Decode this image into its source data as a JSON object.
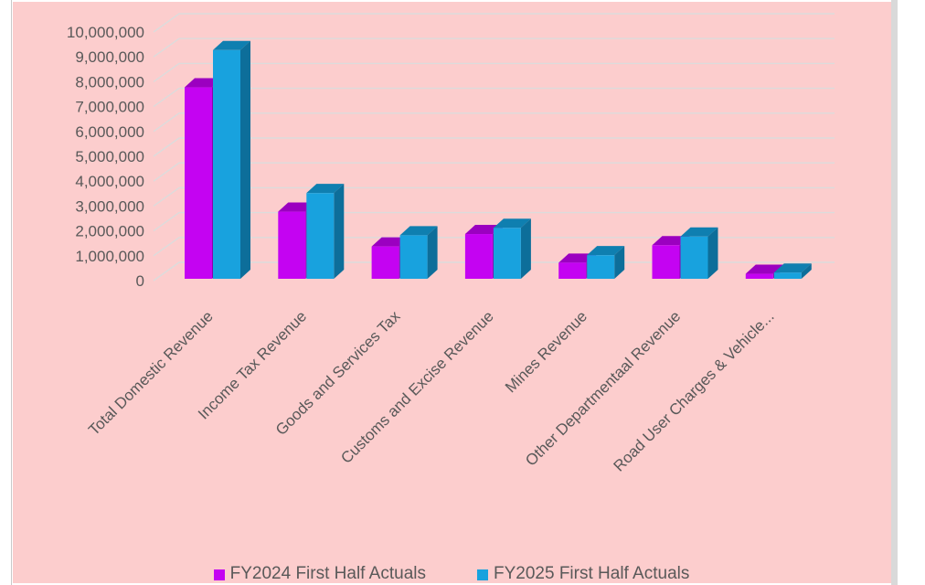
{
  "window": {
    "page_background": "#FFFFFF",
    "left_margin_color": "#FFFFFF",
    "right_strip_color": "#D9D9D9",
    "border_line_color": "#C9C9C9"
  },
  "chart_data": {
    "type": "bar",
    "style": "3d-clustered-column",
    "title": "",
    "xlabel": "",
    "ylabel": "",
    "plot_background": "#FCCDCD",
    "gridline_color": "#DCDCDC",
    "label_color": "#595959",
    "grid": true,
    "legend_position": "bottom",
    "ylim": [
      0,
      10000000
    ],
    "y_tick_step": 1000000,
    "y_ticks": [
      "0",
      "1,000,000",
      "2,000,000",
      "3,000,000",
      "4,000,000",
      "5,000,000",
      "6,000,000",
      "7,000,000",
      "8,000,000",
      "9,000,000",
      "10,000,000"
    ],
    "categories": [
      "Total Domestic Revenue",
      "Income Tax Revenue",
      "Goods and Services Tax",
      "Customs and Excise Revenue",
      "Mines Revenue",
      "Other Departmentaal Revenue",
      "Road User Charges & Vehicle..."
    ],
    "series": [
      {
        "name": "FY2024 First Half Actuals",
        "color": "#C403F2",
        "color_top": "#9B00C0",
        "color_side": "#8A00AC",
        "values": [
          7700000,
          2700000,
          1300000,
          1800000,
          650000,
          1350000,
          200000
        ]
      },
      {
        "name": "FY2025 First Half Actuals",
        "color": "#18A2DE",
        "color_top": "#0F7FB0",
        "color_side": "#0D6E9A",
        "values": [
          9200000,
          3450000,
          1750000,
          2050000,
          950000,
          1700000,
          250000
        ]
      }
    ]
  }
}
